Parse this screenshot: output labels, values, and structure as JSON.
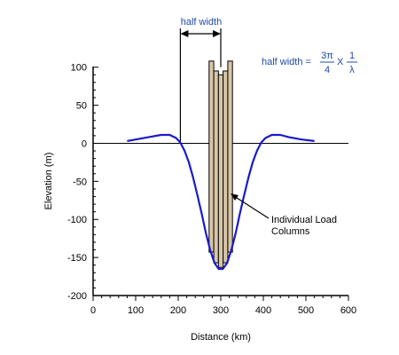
{
  "chart_data": {
    "type": "line",
    "title": "",
    "xlabel": "Distance (km)",
    "ylabel": "Elevation (m)",
    "xlim": [
      0,
      600
    ],
    "ylim": [
      -200,
      100
    ],
    "xticks": [
      "0",
      "100",
      "200",
      "300",
      "400",
      "500",
      "600"
    ],
    "yticks": [
      "100",
      "50",
      "0",
      "-50",
      "-100",
      "-150",
      "-200"
    ],
    "series": [
      {
        "x": [
          80,
          100,
          130,
          160,
          180,
          195,
          205,
          215,
          225,
          235,
          245,
          255,
          265,
          275,
          285,
          295,
          305,
          315,
          325,
          335,
          345,
          355,
          365,
          375,
          385,
          395,
          405,
          420,
          440,
          460,
          490,
          520
        ],
        "y": [
          3,
          5,
          8,
          11,
          11,
          7,
          1,
          -10,
          -25,
          -45,
          -68,
          -92,
          -118,
          -140,
          -157,
          -165,
          -165,
          -157,
          -140,
          -118,
          -92,
          -68,
          -45,
          -25,
          -10,
          1,
          7,
          11,
          11,
          8,
          5,
          3
        ]
      }
    ],
    "load_columns": [
      {
        "x_center": 278,
        "top": 108,
        "bottom": -143
      },
      {
        "x_center": 289,
        "top": 95,
        "bottom": -157
      },
      {
        "x_center": 300,
        "top": 90,
        "bottom": -163
      },
      {
        "x_center": 311,
        "top": 95,
        "bottom": -157
      },
      {
        "x_center": 322,
        "top": 108,
        "bottom": -143
      }
    ],
    "column_width": 11,
    "half_width_range": [
      205,
      300
    ]
  },
  "annotations": {
    "half_width_label": "half width",
    "formula_lhs": "half width =",
    "formula_num1": "3π",
    "formula_den1": "4",
    "formula_times": "X",
    "formula_num2": "1",
    "formula_den2": "λ",
    "callout_line1": "Individual Load",
    "callout_line2": "Columns"
  },
  "colors": {
    "curve": "#1a1acc",
    "column_fill": "#d9c6a8",
    "accent_text": "#1f4aa8"
  }
}
